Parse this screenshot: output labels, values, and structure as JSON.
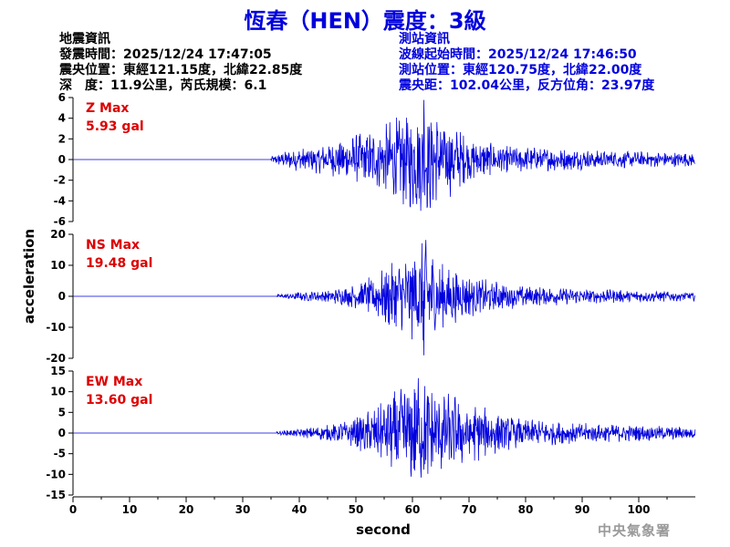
{
  "title": "恆春（HEN）震度：3級",
  "quake_info": {
    "heading": "地震資訊",
    "origin_time": "發震時間：2025/12/24 17:47:05",
    "epicenter": "震央位置：東經121.15度，北緯22.85度",
    "depth_magnitude": "深　度：11.9公里，芮氏規模：6.1"
  },
  "station_info": {
    "heading": "測站資訊",
    "wave_start": "波線起始時間：2025/12/24 17:46:50",
    "location": "測站位置：東經120.75度，北緯22.00度",
    "distance": "震央距：102.04公里，反方位角：23.97度"
  },
  "agency": "中央氣象署",
  "colors": {
    "title": "#0000dd",
    "trace": "#0000dd",
    "label": "#dd0000",
    "axis": "#000000",
    "agency": "#9a9a9a"
  },
  "chart_data": {
    "type": "line",
    "xlabel": "second",
    "ylabel": "acceleration",
    "xlim": [
      0,
      110
    ],
    "x_ticks": [
      0,
      10,
      20,
      30,
      40,
      50,
      60,
      70,
      80,
      90,
      100
    ],
    "grid": false,
    "panels": [
      {
        "name": "Z Max",
        "max_label": "5.93 gal",
        "ylim": [
          -6,
          6
        ],
        "y_ticks": [
          6,
          4,
          2,
          0,
          -2,
          -4,
          -6
        ],
        "onset": 35,
        "envelope": [
          [
            35,
            0.3
          ],
          [
            38,
            1.0
          ],
          [
            45,
            1.5
          ],
          [
            50,
            2.5
          ],
          [
            55,
            3.5
          ],
          [
            58,
            4.5
          ],
          [
            62,
            5.9
          ],
          [
            66,
            4.0
          ],
          [
            70,
            2.2
          ],
          [
            75,
            1.5
          ],
          [
            80,
            1.3
          ],
          [
            90,
            1.0
          ],
          [
            100,
            0.8
          ],
          [
            110,
            0.7
          ]
        ]
      },
      {
        "name": "NS Max",
        "max_label": "19.48 gal",
        "ylim": [
          -20,
          20
        ],
        "y_ticks": [
          20,
          10,
          0,
          -10,
          -20
        ],
        "onset": 36,
        "envelope": [
          [
            36,
            0.5
          ],
          [
            40,
            1.5
          ],
          [
            45,
            2.0
          ],
          [
            50,
            4.0
          ],
          [
            53,
            7.0
          ],
          [
            56,
            11
          ],
          [
            59,
            13
          ],
          [
            62,
            19.5
          ],
          [
            65,
            11
          ],
          [
            70,
            7
          ],
          [
            75,
            5
          ],
          [
            80,
            3.5
          ],
          [
            90,
            2.5
          ],
          [
            100,
            2.0
          ],
          [
            110,
            1.5
          ]
        ]
      },
      {
        "name": "EW Max",
        "max_label": "13.60 gal",
        "ylim": [
          -15,
          15
        ],
        "y_ticks": [
          15,
          10,
          5,
          0,
          -5,
          -10,
          -15
        ],
        "onset": 36,
        "envelope": [
          [
            36,
            0.4
          ],
          [
            40,
            1.0
          ],
          [
            45,
            2.0
          ],
          [
            50,
            4.0
          ],
          [
            55,
            8.0
          ],
          [
            58,
            12.0
          ],
          [
            61,
            13.6
          ],
          [
            65,
            11
          ],
          [
            70,
            8
          ],
          [
            75,
            5
          ],
          [
            80,
            3.5
          ],
          [
            90,
            2.5
          ],
          [
            100,
            2.0
          ],
          [
            110,
            1.5
          ]
        ]
      }
    ]
  }
}
